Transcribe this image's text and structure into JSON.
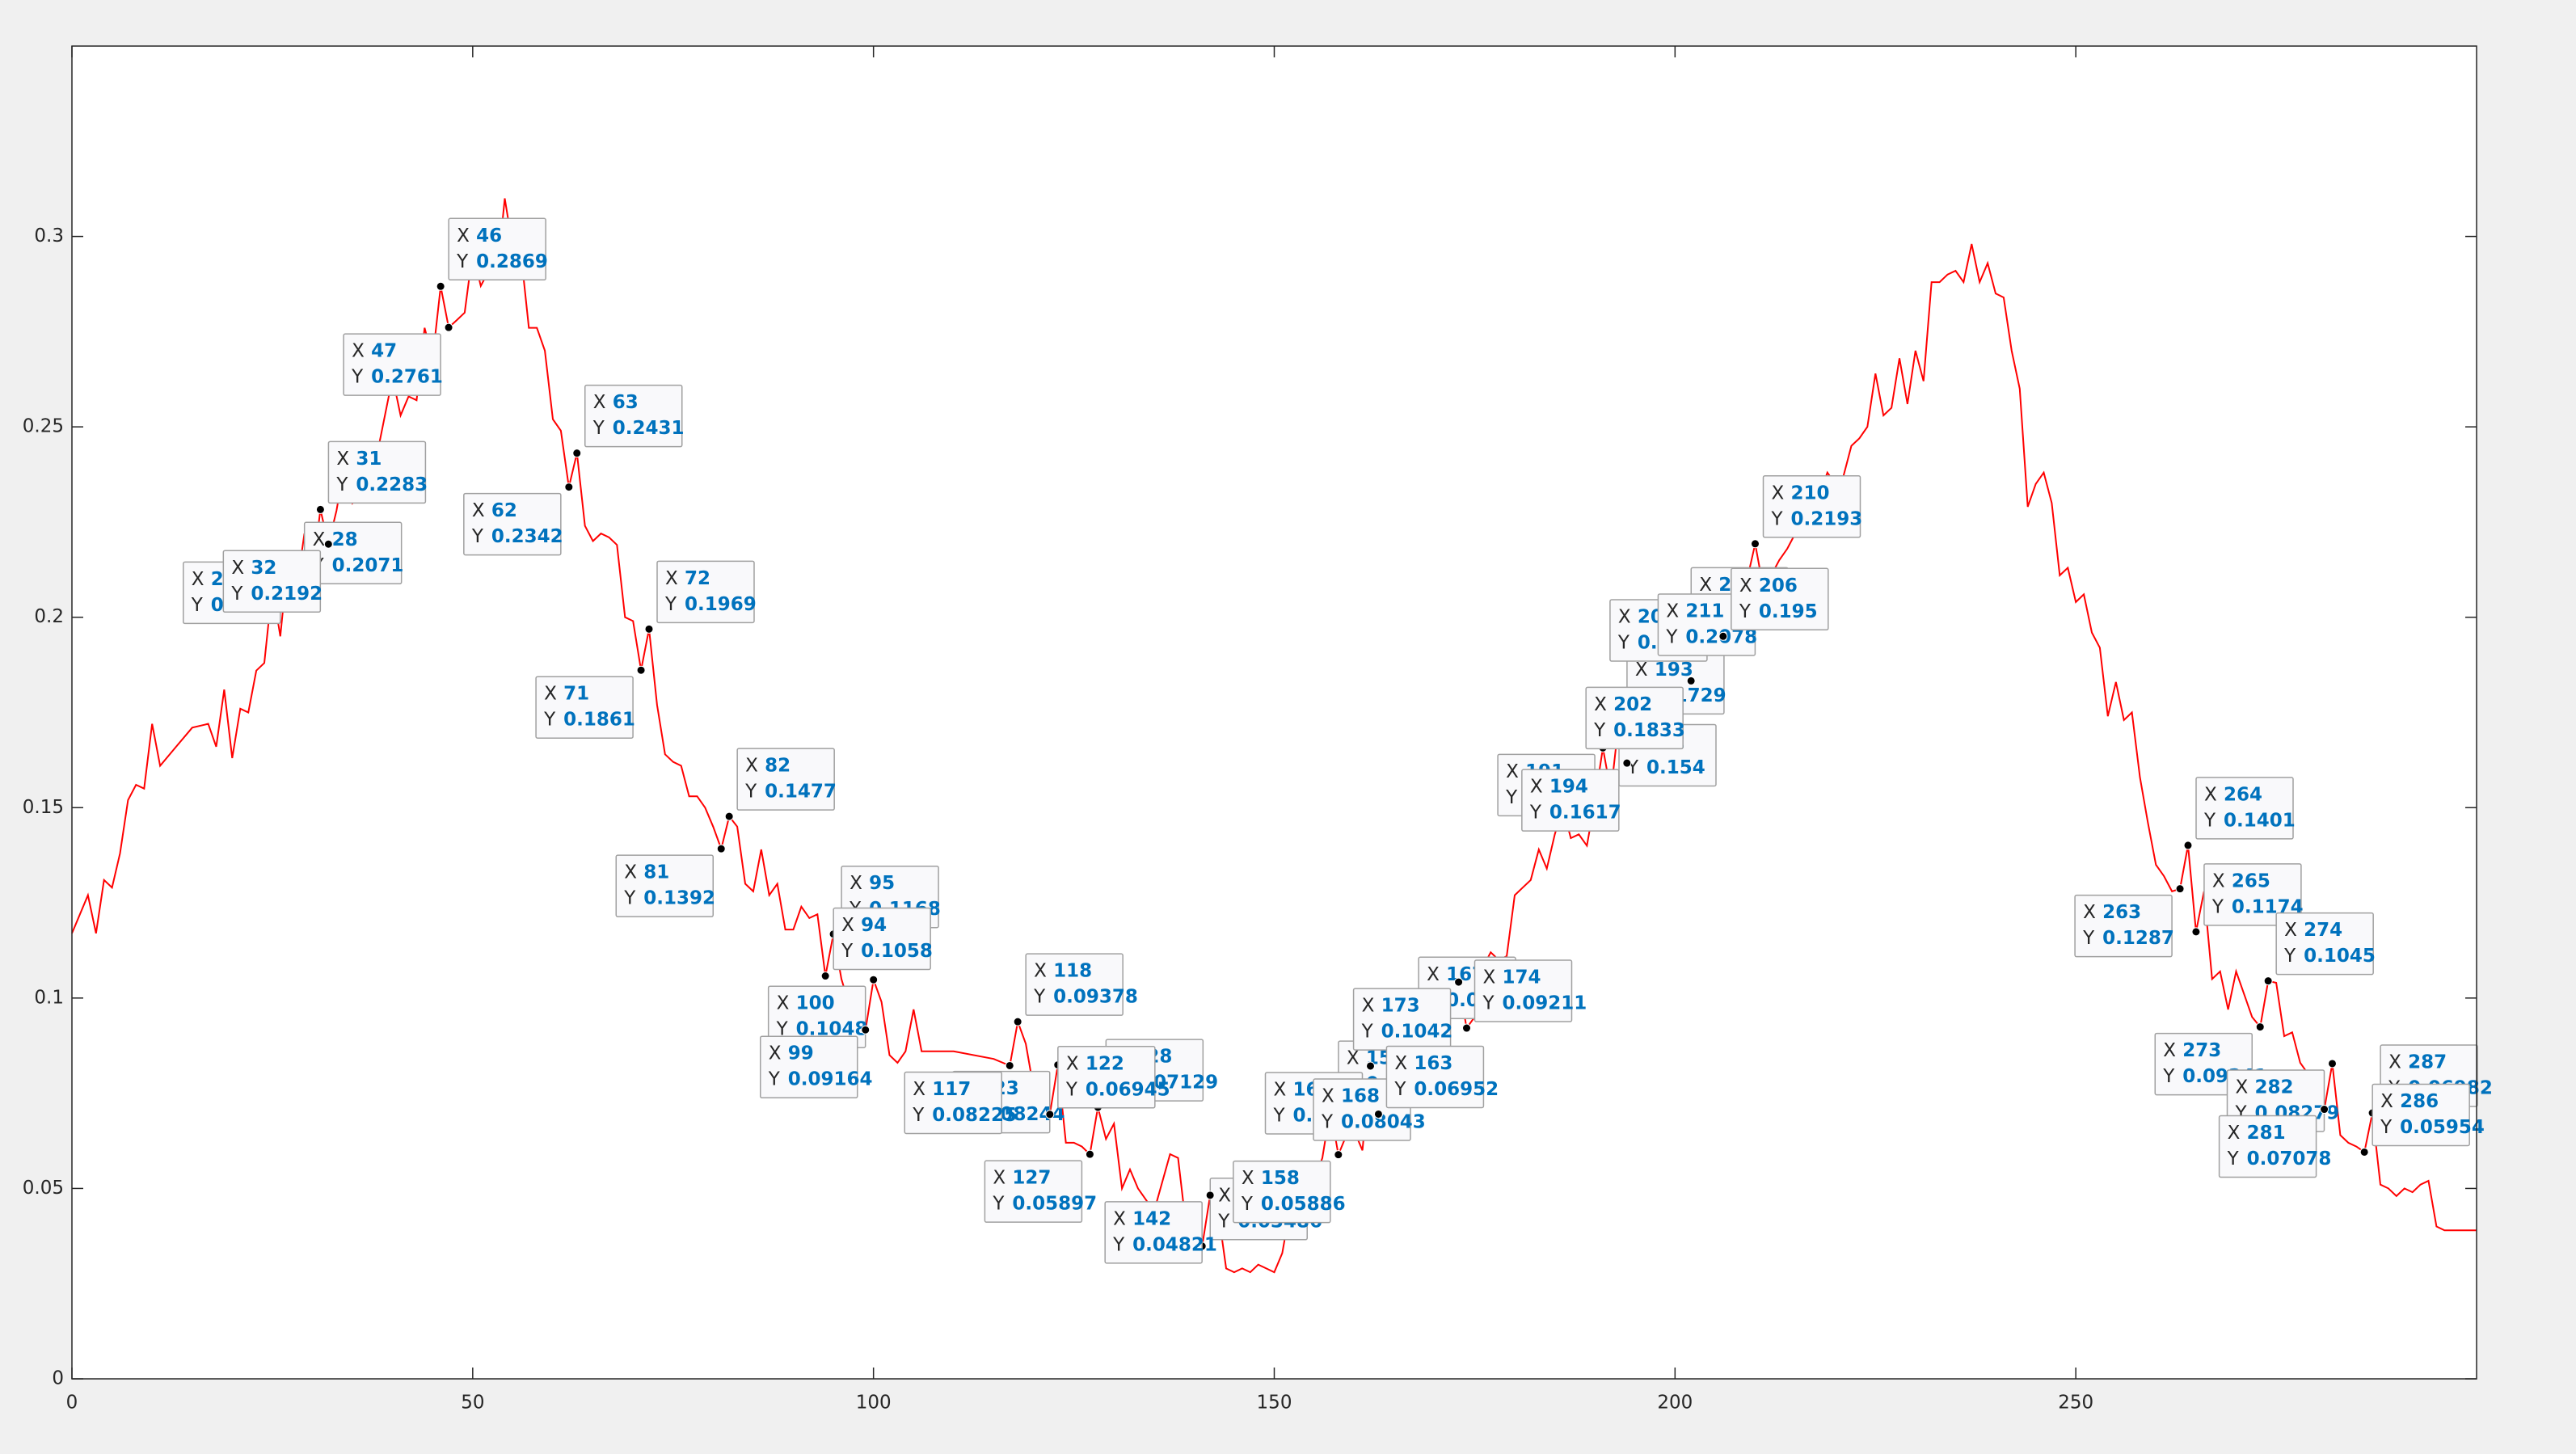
{
  "chart_data": {
    "type": "line",
    "color": "#ff0000",
    "x": [
      0,
      2,
      3,
      4,
      5,
      6,
      7,
      8,
      9,
      10,
      11,
      13,
      15,
      17,
      18,
      19,
      20,
      21,
      22,
      23,
      24,
      25,
      26,
      27,
      28,
      29,
      30,
      31,
      32,
      33,
      34,
      35,
      37,
      38,
      40,
      41,
      42,
      43,
      44,
      45,
      46,
      47,
      48,
      49,
      50,
      51,
      52,
      53,
      54,
      55,
      56,
      57,
      58,
      59,
      60,
      61,
      62,
      63,
      64,
      65,
      66,
      67,
      68,
      69,
      70,
      71,
      72,
      73,
      74,
      75,
      76,
      77,
      78,
      79,
      80,
      81,
      82,
      83,
      84,
      85,
      86,
      87,
      88,
      89,
      90,
      91,
      92,
      93,
      94,
      95,
      96,
      97,
      98,
      99,
      100,
      101,
      102,
      103,
      104,
      105,
      106,
      110,
      115,
      117,
      118,
      119,
      120,
      121,
      122,
      123,
      124,
      125,
      126,
      127,
      128,
      129,
      130,
      131,
      132,
      133,
      135,
      137,
      138,
      139,
      140,
      141,
      142,
      143,
      144,
      145,
      146,
      147,
      148,
      149,
      150,
      151,
      152,
      153,
      154,
      155,
      156,
      157,
      158,
      159,
      160,
      161,
      162,
      163,
      164,
      165,
      166,
      167,
      168,
      169,
      170,
      171,
      173,
      174,
      175,
      176,
      177,
      178,
      179,
      180,
      181,
      182,
      183,
      184,
      185,
      186,
      187,
      188,
      189,
      190,
      191,
      192,
      193,
      194,
      195,
      196,
      197,
      198,
      199,
      200,
      201,
      202,
      203,
      204,
      205,
      206,
      207,
      208,
      209,
      210,
      211,
      212,
      213,
      214,
      215,
      216,
      217,
      218,
      219,
      220,
      221,
      222,
      223,
      224,
      225,
      226,
      227,
      228,
      229,
      230,
      231,
      232,
      233,
      234,
      235,
      236,
      237,
      238,
      239,
      240,
      241,
      242,
      243,
      244,
      245,
      246,
      247,
      248,
      249,
      250,
      251,
      252,
      253,
      254,
      255,
      256,
      257,
      258,
      259,
      260,
      261,
      262,
      263,
      264,
      265,
      266,
      267,
      268,
      269,
      270,
      271,
      272,
      273,
      274,
      275,
      276,
      277,
      278,
      279,
      280,
      281,
      282,
      283,
      284,
      285,
      286,
      287,
      288,
      289,
      290,
      291,
      292,
      293,
      294,
      295,
      296,
      298,
      300
    ],
    "values": [
      0.117,
      0.127,
      0.117,
      0.131,
      0.129,
      0.138,
      0.152,
      0.156,
      0.155,
      0.172,
      0.161,
      0.166,
      0.171,
      0.172,
      0.166,
      0.181,
      0.163,
      0.176,
      0.175,
      0.186,
      0.188,
      0.208,
      0.195,
      0.2162,
      0.2071,
      0.222,
      0.211,
      0.2283,
      0.2192,
      0.228,
      0.24,
      0.23,
      0.236,
      0.242,
      0.263,
      0.253,
      0.258,
      0.257,
      0.276,
      0.268,
      0.2869,
      0.2761,
      0.278,
      0.28,
      0.296,
      0.287,
      0.291,
      0.289,
      0.31,
      0.297,
      0.296,
      0.276,
      0.276,
      0.27,
      0.252,
      0.249,
      0.2342,
      0.2431,
      0.224,
      0.22,
      0.222,
      0.221,
      0.219,
      0.2,
      0.199,
      0.1861,
      0.1969,
      0.177,
      0.164,
      0.162,
      0.161,
      0.153,
      0.153,
      0.15,
      0.145,
      0.1392,
      0.1477,
      0.145,
      0.13,
      0.128,
      0.139,
      0.127,
      0.13,
      0.118,
      0.118,
      0.124,
      0.121,
      0.122,
      0.1058,
      0.1168,
      0.105,
      0.098,
      0.096,
      0.09164,
      0.1048,
      0.099,
      0.085,
      0.083,
      0.086,
      0.097,
      0.086,
      0.086,
      0.084,
      0.08225,
      0.09378,
      0.088,
      0.076,
      0.07,
      0.06945,
      0.08244,
      0.062,
      0.062,
      0.061,
      0.05897,
      0.07129,
      0.063,
      0.067,
      0.05,
      0.055,
      0.05,
      0.044,
      0.059,
      0.058,
      0.04,
      0.038,
      0.03486,
      0.04821,
      0.044,
      0.029,
      0.028,
      0.029,
      0.028,
      0.03,
      0.029,
      0.028,
      0.033,
      0.045,
      0.051,
      0.051,
      0.052,
      0.058,
      0.07087,
      0.05886,
      0.064,
      0.065,
      0.06,
      0.08215,
      0.06952,
      0.072,
      0.073,
      0.077,
      0.09291,
      0.08043,
      0.085,
      0.09,
      0.09,
      0.1042,
      0.09211,
      0.095,
      0.108,
      0.112,
      0.11,
      0.111,
      0.127,
      0.129,
      0.131,
      0.139,
      0.134,
      0.143,
      0.15,
      0.142,
      0.143,
      0.14,
      0.152,
      0.1657,
      0.154,
      0.1729,
      0.1617,
      0.177,
      0.181,
      0.178,
      0.192,
      0.178,
      0.189,
      0.1952,
      0.1833,
      0.196,
      0.199,
      0.2063,
      0.195,
      0.199,
      0.205,
      0.21,
      0.2193,
      0.2078,
      0.211,
      0.215,
      0.218,
      0.222,
      0.23,
      0.231,
      0.232,
      0.238,
      0.235,
      0.237,
      0.245,
      0.247,
      0.25,
      0.264,
      0.253,
      0.255,
      0.268,
      0.256,
      0.27,
      0.262,
      0.288,
      0.288,
      0.29,
      0.291,
      0.288,
      0.298,
      0.288,
      0.293,
      0.285,
      0.284,
      0.27,
      0.26,
      0.229,
      0.235,
      0.238,
      0.23,
      0.211,
      0.213,
      0.204,
      0.206,
      0.196,
      0.192,
      0.174,
      0.183,
      0.173,
      0.175,
      0.158,
      0.146,
      0.135,
      0.132,
      0.128,
      0.1287,
      0.1401,
      0.1174,
      0.128,
      0.105,
      0.107,
      0.097,
      0.107,
      0.101,
      0.095,
      0.09241,
      0.1045,
      0.104,
      0.09,
      0.091,
      0.083,
      0.08,
      0.075,
      0.07078,
      0.08279,
      0.064,
      0.062,
      0.061,
      0.05954,
      0.06982,
      0.051,
      0.05,
      0.048,
      0.05,
      0.049,
      0.051,
      0.052,
      0.04,
      0.039,
      0.039,
      0.039
    ],
    "xlim": [
      0,
      300
    ],
    "ylim": [
      0,
      0.35
    ],
    "xticks": [
      0,
      50,
      100,
      150,
      200,
      250
    ],
    "yticks": [
      0,
      0.05,
      0.1,
      0.15,
      0.2,
      0.25,
      0.3
    ],
    "datatips": {
      "x_label": "X",
      "y_label": "Y",
      "x": [
        46,
        47,
        31,
        27,
        28,
        32,
        63,
        62,
        72,
        71,
        82,
        81,
        95,
        100,
        94,
        99,
        118,
        123,
        128,
        117,
        122,
        127,
        141,
        142,
        157,
        162,
        167,
        173,
        174,
        168,
        163,
        158,
        193,
        191,
        192,
        194,
        210,
        205,
        201,
        211,
        206,
        202,
        264,
        263,
        265,
        273,
        274,
        282,
        287,
        281,
        286
      ],
      "y": [
        0.2869,
        0.2761,
        0.2283,
        0.2162,
        0.2071,
        0.2192,
        0.2431,
        0.2342,
        0.1969,
        0.1861,
        0.1477,
        0.1392,
        0.1168,
        0.1048,
        0.1058,
        0.09164,
        0.09378,
        0.08244,
        0.07129,
        0.08225,
        0.06945,
        0.05897,
        0.03486,
        0.04821,
        0.07087,
        0.08215,
        0.09291,
        0.1042,
        0.09211,
        0.08043,
        0.06952,
        0.05886,
        0.1729,
        0.1657,
        0.154,
        0.1617,
        0.2193,
        0.2063,
        0.1952,
        0.2078,
        0.195,
        0.1833,
        0.1401,
        0.1287,
        0.1174,
        0.09241,
        0.1045,
        0.08279,
        0.06982,
        0.07078,
        0.05954
      ]
    }
  }
}
